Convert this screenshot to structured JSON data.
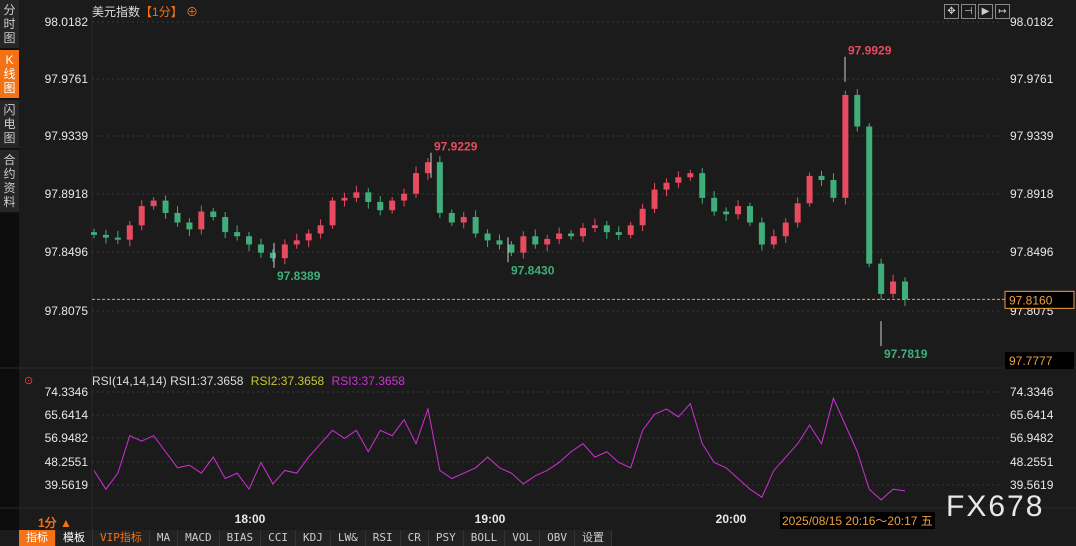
{
  "sidebar": {
    "items": [
      {
        "label": "分时图"
      },
      {
        "label": "K线图",
        "active": true
      },
      {
        "label": "闪电图"
      },
      {
        "label": "合约资料"
      }
    ]
  },
  "header": {
    "title": "美元指数",
    "period": "【1分】",
    "add_icon": "crosshair-plus-icon"
  },
  "toolbar_icons": [
    "crosshair-icon",
    "zoom-left-icon",
    "play-icon",
    "scroll-right-icon"
  ],
  "colors": {
    "up": "#e84a5f",
    "down": "#3fae7a",
    "accent": "#f47216",
    "rsi": "#d02fd8",
    "rsi2": "#c8c832"
  },
  "price_axis": {
    "ticks": [
      "98.0182",
      "97.9761",
      "97.9339",
      "97.8918",
      "97.8496",
      "97.8075"
    ],
    "current": "97.8160",
    "bottom": "97.7777"
  },
  "annotations": {
    "high1": "97.9929",
    "high2": "97.9229",
    "low1": "97.8389",
    "low2": "97.8430",
    "low3": "97.7819"
  },
  "rsi": {
    "title": "RSI(14,14,14)",
    "rsi1": "RSI1:37.3658",
    "rsi2": "RSI2:37.3658",
    "rsi3": "RSI3:37.3658",
    "ticks": [
      "74.3346",
      "65.6414",
      "56.9482",
      "48.2551",
      "39.5619"
    ]
  },
  "time_axis": {
    "period_label": "1分 ▲",
    "ticks": [
      "18:00",
      "19:00",
      "20:00"
    ],
    "cursor": "2025/08/15 20:16～20:17 五"
  },
  "watermark": "FX678",
  "bottom_toolbar": [
    "指标",
    "模板",
    "VIP指标",
    "MA",
    "MACD",
    "BIAS",
    "CCI",
    "KDJ",
    "LW&",
    "RSI",
    "CR",
    "PSY",
    "BOLL",
    "VOL",
    "OBV",
    "设置"
  ],
  "chart_data": {
    "type": "candlestick",
    "ylim": [
      97.7777,
      98.0182
    ],
    "closes": [
      97.863,
      97.861,
      97.8595,
      97.87,
      97.884,
      97.888,
      97.879,
      97.872,
      97.867,
      97.88,
      97.876,
      97.865,
      97.862,
      97.856,
      97.85,
      97.846,
      97.856,
      97.859,
      97.864,
      97.87,
      97.888,
      97.89,
      97.894,
      97.887,
      97.881,
      97.888,
      97.893,
      97.908,
      97.916,
      97.879,
      97.872,
      97.876,
      97.864,
      97.859,
      97.856,
      97.85,
      97.862,
      97.856,
      97.86,
      97.864,
      97.862,
      97.868,
      97.87,
      97.865,
      97.863,
      97.87,
      97.882,
      97.896,
      97.901,
      97.905,
      97.908,
      97.89,
      97.88,
      97.878,
      97.884,
      97.872,
      97.856,
      97.862,
      97.872,
      97.886,
      97.906,
      97.903,
      97.89,
      97.965,
      97.942,
      97.842,
      97.82,
      97.829,
      97.816
    ],
    "rsi_ylim": [
      35,
      74.3346
    ],
    "rsi_values": [
      45,
      38,
      44,
      58,
      56,
      58,
      52,
      46,
      47,
      44,
      50,
      42,
      44,
      38,
      48,
      40,
      45,
      44,
      50,
      55,
      60,
      57,
      60,
      52,
      60,
      58,
      64,
      55,
      68,
      45,
      42,
      44,
      46,
      50,
      46,
      44,
      40,
      43,
      45,
      48,
      52,
      55,
      50,
      52,
      48,
      46,
      60,
      66,
      68,
      65,
      70,
      55,
      48,
      46,
      42,
      38,
      35,
      45,
      50,
      55,
      62,
      55,
      72,
      62,
      52,
      38,
      34,
      38,
      37.3658
    ]
  }
}
